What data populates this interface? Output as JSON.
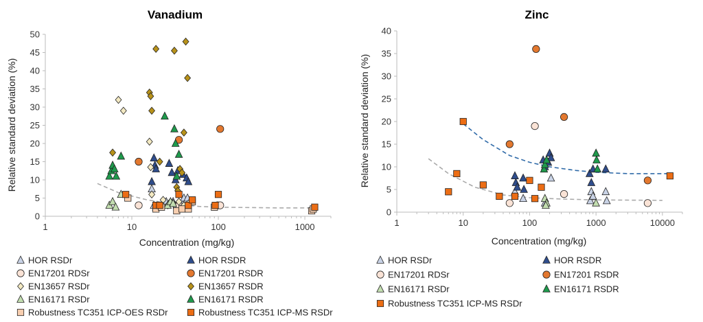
{
  "chart_data": [
    {
      "type": "scatter",
      "title": "Vanadium",
      "xlabel": "Concentration (mg/kg)",
      "ylabel": "Relative standard deviation (%)",
      "x_scale": "log",
      "xlim": [
        1,
        2000
      ],
      "ylim": [
        0,
        50
      ],
      "x_ticks": [
        "1",
        "10",
        "100",
        "1000"
      ],
      "y_ticks": [
        "0",
        "5",
        "10",
        "15",
        "20",
        "25",
        "30",
        "35",
        "40",
        "45",
        "50"
      ],
      "grid": false,
      "legend_position": "bottom",
      "series": [
        {
          "name": "HOR RSDr",
          "marker": "triangle",
          "color": "#c9d3e6",
          "points": [
            [
              17,
              7.5
            ],
            [
              18,
              3
            ],
            [
              19,
              2.5
            ],
            [
              22,
              3
            ],
            [
              25,
              4
            ],
            [
              30,
              4
            ],
            [
              33,
              3
            ],
            [
              38,
              3.5
            ],
            [
              40,
              5
            ],
            [
              44,
              5
            ]
          ]
        },
        {
          "name": "HOR RSDR",
          "marker": "triangle",
          "color": "#2f4d8c",
          "points": [
            [
              17,
              9.5
            ],
            [
              18,
              16
            ],
            [
              18.5,
              14
            ],
            [
              19,
              13
            ],
            [
              27,
              14.5
            ],
            [
              29,
              12
            ],
            [
              32,
              10
            ],
            [
              34,
              12.5
            ],
            [
              39,
              11.5
            ],
            [
              43,
              10.5
            ],
            [
              45,
              9.5
            ]
          ]
        },
        {
          "name": "EN17201 RDSr",
          "marker": "circle",
          "color": "#fae3d6",
          "points": [
            [
              12,
              3
            ],
            [
              35,
              3
            ],
            [
              40,
              2.5
            ],
            [
              98,
              3
            ],
            [
              105,
              3
            ]
          ]
        },
        {
          "name": "EN17201 RSDR",
          "marker": "circle",
          "color": "#e3782f",
          "points": [
            [
              12,
              15
            ],
            [
              35,
              21
            ],
            [
              105,
              24
            ]
          ]
        },
        {
          "name": "EN13657 RSDr",
          "marker": "diamond",
          "color": "#f3e9c2",
          "points": [
            [
              7,
              32
            ],
            [
              8,
              29
            ],
            [
              16,
              20.5
            ],
            [
              16.5,
              13.5
            ],
            [
              17,
              6
            ],
            [
              20,
              3
            ],
            [
              23,
              4.5
            ],
            [
              26,
              3
            ],
            [
              28,
              4
            ],
            [
              30,
              3.5
            ],
            [
              35,
              4
            ],
            [
              40,
              3
            ],
            [
              45,
              3.5
            ]
          ]
        },
        {
          "name": "EN13657 RSDR",
          "marker": "diamond",
          "color": "#b8921a",
          "points": [
            [
              6,
              17.5
            ],
            [
              16,
              34
            ],
            [
              16.5,
              33
            ],
            [
              17,
              29
            ],
            [
              19,
              46
            ],
            [
              21,
              15
            ],
            [
              31,
              45.5
            ],
            [
              33,
              8
            ],
            [
              36,
              13
            ],
            [
              38,
              12
            ],
            [
              40,
              23
            ],
            [
              42,
              48
            ],
            [
              44,
              38
            ],
            [
              34,
              7
            ]
          ]
        },
        {
          "name": "EN16171 RSDr",
          "marker": "triangle",
          "color": "#c3deb0",
          "points": [
            [
              5.5,
              3
            ],
            [
              6,
              4
            ],
            [
              6.5,
              2.5
            ],
            [
              7.5,
              6
            ],
            [
              26,
              3
            ],
            [
              28,
              4
            ],
            [
              30,
              3.5
            ]
          ]
        },
        {
          "name": "EN16171 RSDR",
          "marker": "triangle",
          "color": "#1f9a4c",
          "points": [
            [
              5.5,
              11
            ],
            [
              5.8,
              12.5
            ],
            [
              6,
              14
            ],
            [
              6.3,
              13
            ],
            [
              6.6,
              11
            ],
            [
              7.5,
              16.5
            ],
            [
              24,
              27.5
            ],
            [
              31,
              24
            ],
            [
              32,
              20
            ],
            [
              35,
              17
            ],
            [
              33,
              11
            ]
          ]
        },
        {
          "name": "Robustness TC351 ICP-OES RSDr",
          "marker": "square",
          "color": "#f8cfb0",
          "points": [
            [
              9,
              5
            ],
            [
              19,
              2
            ],
            [
              22,
              2.5
            ],
            [
              33,
              1.5
            ],
            [
              38,
              2
            ],
            [
              45,
              2
            ],
            [
              50,
              4
            ],
            [
              90,
              2.5
            ],
            [
              1200,
              1.5
            ],
            [
              1250,
              2
            ]
          ]
        },
        {
          "name": "Robustness TC351 ICP-MS RSDr",
          "marker": "square",
          "color": "#ec6d14",
          "points": [
            [
              8.5,
              6
            ],
            [
              19,
              3
            ],
            [
              21,
              3
            ],
            [
              35,
              6
            ],
            [
              45,
              3
            ],
            [
              50,
              4.5
            ],
            [
              100,
              6
            ],
            [
              92,
              3
            ],
            [
              1300,
              2.5
            ]
          ]
        }
      ],
      "trendlines": [
        {
          "series": "Robustness TC351 ICP-OES RSDr",
          "color": "#aaaaaa",
          "points": [
            [
              4,
              9
            ],
            [
              7,
              6.5
            ],
            [
              15,
              4.5
            ],
            [
              30,
              3.4
            ],
            [
              60,
              2.7
            ],
            [
              100,
              2.5
            ],
            [
              500,
              2.3
            ],
            [
              1300,
              2.3
            ]
          ]
        }
      ]
    },
    {
      "type": "scatter",
      "title": "Zinc",
      "xlabel": "Concentration (mg/kg)",
      "ylabel": "Relative standard deviation (%)",
      "x_scale": "log",
      "xlim": [
        1,
        20000
      ],
      "ylim": [
        0,
        40
      ],
      "x_ticks": [
        "1",
        "10",
        "100",
        "1000",
        "10000"
      ],
      "y_ticks": [
        "0",
        "5",
        "10",
        "15",
        "20",
        "25",
        "30",
        "35",
        "40"
      ],
      "grid": false,
      "legend_position": "bottom",
      "series": [
        {
          "name": "HOR RSDr",
          "marker": "triangle",
          "color": "#c9d3e6",
          "points": [
            [
              60,
              4.5
            ],
            [
              80,
              3
            ],
            [
              170,
              2
            ],
            [
              210,
              7.5
            ],
            [
              820,
              2.5
            ],
            [
              850,
              4.5
            ],
            [
              900,
              3.5
            ],
            [
              1400,
              4.5
            ],
            [
              1450,
              2.5
            ]
          ]
        },
        {
          "name": "HOR RSDR",
          "marker": "triangle",
          "color": "#2f4d8c",
          "points": [
            [
              60,
              8
            ],
            [
              62,
              6.5
            ],
            [
              65,
              5.5
            ],
            [
              80,
              7.5
            ],
            [
              82,
              5
            ],
            [
              160,
              11.5
            ],
            [
              170,
              10
            ],
            [
              190,
              11
            ],
            [
              200,
              13
            ],
            [
              210,
              12
            ],
            [
              800,
              8.5
            ],
            [
              850,
              6.5
            ],
            [
              900,
              9.5
            ],
            [
              1400,
              9.5
            ]
          ]
        },
        {
          "name": "EN17201 RDSr",
          "marker": "circle",
          "color": "#fae3d6",
          "points": [
            [
              50,
              2
            ],
            [
              120,
              19
            ],
            [
              330,
              4
            ],
            [
              6000,
              2
            ]
          ]
        },
        {
          "name": "EN17201 RSDR",
          "marker": "circle",
          "color": "#e3782f",
          "points": [
            [
              50,
              15
            ],
            [
              125,
              36
            ],
            [
              330,
              21
            ],
            [
              6000,
              7
            ]
          ]
        },
        {
          "name": "EN16171 RSDr",
          "marker": "triangle",
          "color": "#c3deb0",
          "points": [
            [
              170,
              3
            ],
            [
              180,
              2
            ],
            [
              175,
              1.5
            ],
            [
              1000,
              2
            ]
          ]
        },
        {
          "name": "EN16171 RSDR",
          "marker": "triangle",
          "color": "#1f9a4c",
          "points": [
            [
              165,
              9.5
            ],
            [
              170,
              10.5
            ],
            [
              180,
              11.5
            ],
            [
              1000,
              13
            ],
            [
              1020,
              11.5
            ],
            [
              1050,
              9.5
            ]
          ]
        },
        {
          "name": "Robustness TC351 ICP-MS RSDr",
          "marker": "square",
          "color": "#ec6d14",
          "points": [
            [
              6,
              4.5
            ],
            [
              8,
              8.5
            ],
            [
              10,
              20
            ],
            [
              20,
              6
            ],
            [
              35,
              3.5
            ],
            [
              60,
              3.5
            ],
            [
              100,
              7
            ],
            [
              120,
              3
            ],
            [
              150,
              5.5
            ],
            [
              13000,
              8
            ]
          ]
        }
      ],
      "trendlines": [
        {
          "series": "HOR RSDR",
          "color": "#2f6aa8",
          "points": [
            [
              10,
              19.5
            ],
            [
              20,
              16
            ],
            [
              50,
              12.5
            ],
            [
              100,
              11
            ],
            [
              200,
              10
            ],
            [
              500,
              9.2
            ],
            [
              1000,
              8.8
            ],
            [
              3000,
              8.5
            ],
            [
              13000,
              8.5
            ]
          ]
        },
        {
          "series": "HOR RSDr",
          "color": "#aaaaaa",
          "points": [
            [
              3,
              11.8
            ],
            [
              6,
              8.5
            ],
            [
              15,
              5.5
            ],
            [
              40,
              3.8
            ],
            [
              100,
              3.2
            ],
            [
              300,
              2.9
            ],
            [
              1000,
              2.7
            ],
            [
              10000,
              2.6
            ]
          ]
        }
      ]
    }
  ]
}
